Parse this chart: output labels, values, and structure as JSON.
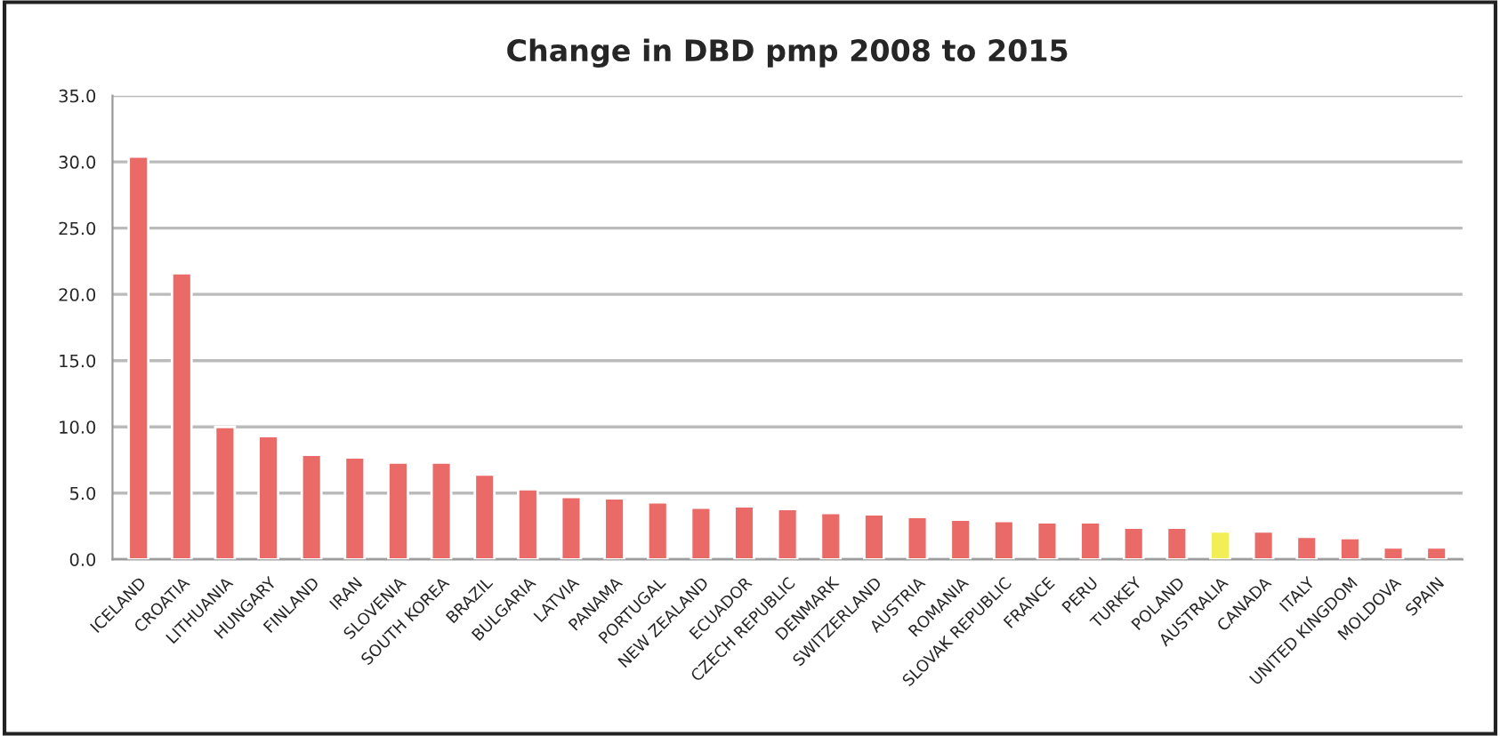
{
  "chart_data": {
    "type": "bar",
    "title": "Change in DBD pmp 2008 to 2015",
    "categories": [
      "ICELAND",
      "CROATIA",
      "LITHUANIA",
      "HUNGARY",
      "FINLAND",
      "IRAN",
      "SLOVENIA",
      "SOUTH KOREA",
      "BRAZIL",
      "BULGARIA",
      "LATVIA",
      "PANAMA",
      "PORTUGAL",
      "NEW ZEALAND",
      "ECUADOR",
      "CZECH REPUBLIC",
      "DENMARK",
      "SWITZERLAND",
      "AUSTRIA",
      "ROMANIA",
      "SLOVAK REPUBLIC",
      "FRANCE",
      "PERU",
      "TURKEY",
      "POLAND",
      "AUSTRALIA",
      "CANADA",
      "ITALY",
      "UNITED KINGDOM",
      "MOLDOVA",
      "SPAIN"
    ],
    "values": [
      30.4,
      21.6,
      10.0,
      9.3,
      7.9,
      7.7,
      7.3,
      7.3,
      6.4,
      5.3,
      4.7,
      4.6,
      4.3,
      3.9,
      4.0,
      3.8,
      3.5,
      3.4,
      3.2,
      3.0,
      2.9,
      2.8,
      2.8,
      2.4,
      2.4,
      2.1,
      2.1,
      1.7,
      1.6,
      0.9,
      0.9
    ],
    "colors": [
      "#e96a66",
      "#e96a66",
      "#e96a66",
      "#e96a66",
      "#e96a66",
      "#e96a66",
      "#e96a66",
      "#e96a66",
      "#e96a66",
      "#e96a66",
      "#e96a66",
      "#e96a66",
      "#e96a66",
      "#e96a66",
      "#e96a66",
      "#e96a66",
      "#e96a66",
      "#e96a66",
      "#e96a66",
      "#e96a66",
      "#e96a66",
      "#e96a66",
      "#e96a66",
      "#e96a66",
      "#e96a66",
      "#f2ee55",
      "#e96a66",
      "#e96a66",
      "#e96a66",
      "#e96a66",
      "#e96a66"
    ],
    "ylim": [
      0,
      35
    ],
    "yticks": [
      {
        "value": 0,
        "label": "0.0"
      },
      {
        "value": 5,
        "label": "5.0"
      },
      {
        "value": 10,
        "label": "10.0"
      },
      {
        "value": 15,
        "label": "15.0"
      },
      {
        "value": 20,
        "label": "20.0"
      },
      {
        "value": 25,
        "label": "25.0"
      },
      {
        "value": 30,
        "label": "30.0"
      },
      {
        "value": 35,
        "label": "35.0"
      }
    ],
    "grid": "y",
    "legend": false
  }
}
